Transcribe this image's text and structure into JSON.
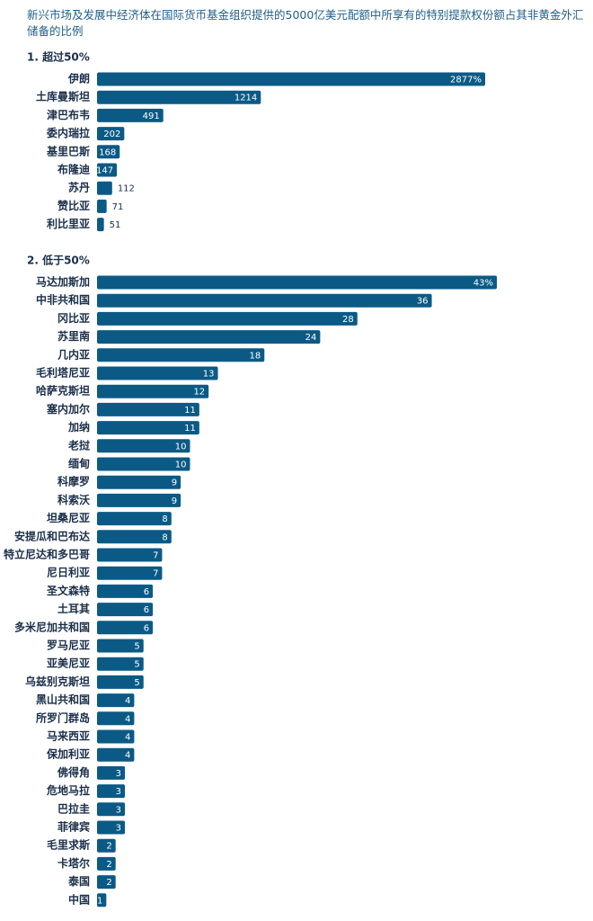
{
  "title": "新兴市场及发展中经济体在国际货币基金组织提供的5000亿美元配额中所享有的特别提款权份额占其非黄金外汇储备的比例",
  "chart_data": [
    {
      "type": "bar",
      "subtitle": "1. 超过50%",
      "color": "#0b5a86",
      "categories": [
        "伊朗",
        "土库曼斯坦",
        "津巴布韦",
        "委内瑞拉",
        "基里巴斯",
        "布隆迪",
        "苏丹",
        "赞比亚",
        "利比里亚"
      ],
      "values": [
        2877,
        1214,
        491,
        202,
        168,
        147,
        112,
        71,
        51
      ],
      "value_labels": [
        "2877%",
        "1214",
        "491",
        "202",
        "168",
        "147",
        "112",
        "71",
        "51"
      ]
    },
    {
      "type": "bar",
      "subtitle": "2. 低于50%",
      "color": "#0b5a86",
      "categories": [
        "马达加斯加",
        "中非共和国",
        "冈比亚",
        "苏里南",
        "几内亚",
        "毛利塔尼亚",
        "哈萨克斯坦",
        "塞内加尔",
        "加纳",
        "老挝",
        "缅甸",
        "科摩罗",
        "科索沃",
        "坦桑尼亚",
        "安提瓜和巴布达",
        "特立尼达和多巴哥",
        "尼日利亚",
        "圣文森特",
        "土耳其",
        "多米尼加共和国",
        "罗马尼亚",
        "亚美尼亚",
        "乌兹别克斯坦",
        "黑山共和国",
        "所罗门群岛",
        "马来西亚",
        "保加利亚",
        "佛得角",
        "危地马拉",
        "巴拉圭",
        "菲律宾",
        "毛里求斯",
        "卡塔尔",
        "泰国",
        "中国"
      ],
      "values": [
        43,
        36,
        28,
        24,
        18,
        13,
        12,
        11,
        11,
        10,
        10,
        9,
        9,
        8,
        8,
        7,
        7,
        6,
        6,
        6,
        5,
        5,
        5,
        4,
        4,
        4,
        4,
        3,
        3,
        3,
        3,
        2,
        2,
        2,
        1
      ],
      "value_labels": [
        "43%",
        "36",
        "28",
        "24",
        "18",
        "13",
        "12",
        "11",
        "11",
        "10",
        "10",
        "9",
        "9",
        "8",
        "8",
        "7",
        "7",
        "6",
        "6",
        "6",
        "5",
        "5",
        "5",
        "4",
        "4",
        "4",
        "4",
        "3",
        "3",
        "3",
        "3",
        "2",
        "2",
        "2",
        "1"
      ]
    }
  ]
}
